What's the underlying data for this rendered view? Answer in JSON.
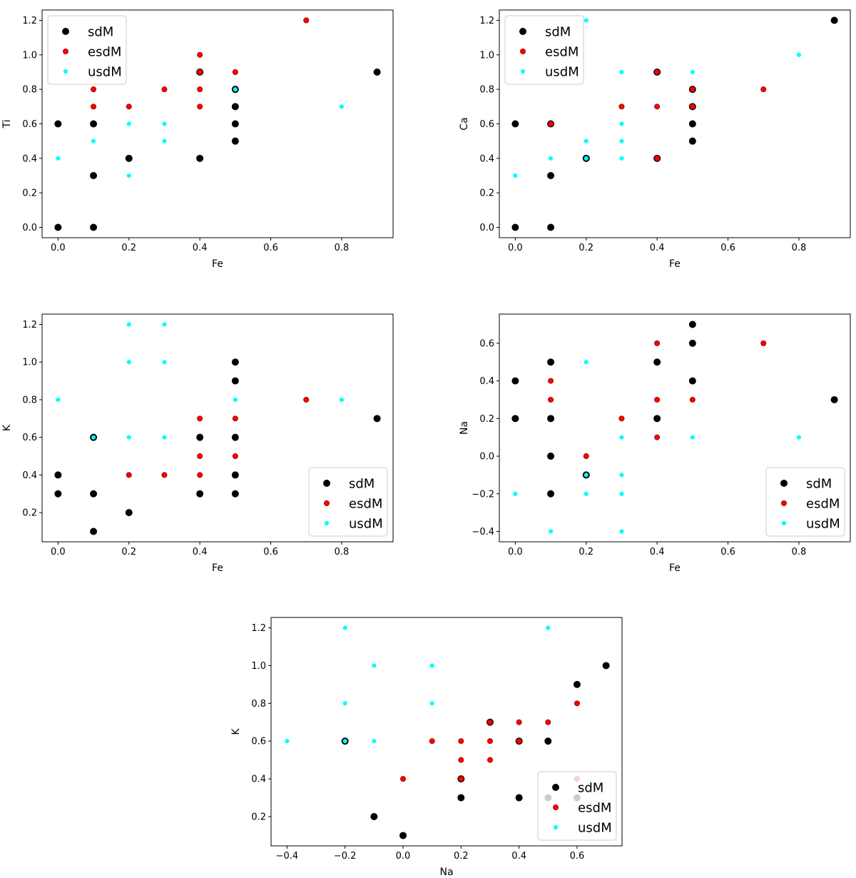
{
  "colors": {
    "sdM": "#000000",
    "esdM": "#ff0000",
    "usdM": "#00ffff"
  },
  "chart_data": [
    {
      "type": "scatter",
      "xlabel": "Fe",
      "ylabel": "Ti",
      "xlim": [
        -0.045,
        0.945
      ],
      "ylim": [
        -0.06,
        1.26
      ],
      "xticks": [
        0.0,
        0.2,
        0.4,
        0.6,
        0.8
      ],
      "xtick_labels": [
        "0.0",
        "0.2",
        "0.4",
        "0.6",
        "0.8"
      ],
      "yticks": [
        0.0,
        0.2,
        0.4,
        0.6,
        0.8,
        1.0,
        1.2
      ],
      "ytick_labels": [
        "0.0",
        "0.2",
        "0.4",
        "0.6",
        "0.8",
        "1.0",
        "1.2"
      ],
      "legend": {
        "placement": "upper-left",
        "entries": [
          "sdM",
          "esdM",
          "usdM"
        ]
      },
      "series": [
        {
          "name": "sdM",
          "points": [
            [
              0,
              0
            ],
            [
              0.1,
              0
            ],
            [
              0,
              0.6
            ],
            [
              0.1,
              0.6
            ],
            [
              0.1,
              0.3
            ],
            [
              0.2,
              0.4
            ],
            [
              0.4,
              0.4
            ],
            [
              0.4,
              0.9
            ],
            [
              0.5,
              0.5
            ],
            [
              0.5,
              0.6
            ],
            [
              0.5,
              0.7
            ],
            [
              0.5,
              0.8
            ],
            [
              0.9,
              0.9
            ]
          ]
        },
        {
          "name": "esdM",
          "points": [
            [
              0.1,
              0.7
            ],
            [
              0.1,
              0.8
            ],
            [
              0.2,
              0.7
            ],
            [
              0.3,
              0.8
            ],
            [
              0.4,
              0.7
            ],
            [
              0.4,
              0.8
            ],
            [
              0.4,
              0.9
            ],
            [
              0.4,
              1.0
            ],
            [
              0.5,
              0.9
            ],
            [
              0.7,
              1.2
            ]
          ]
        },
        {
          "name": "usdM",
          "points": [
            [
              0,
              0.4
            ],
            [
              0.1,
              0.5
            ],
            [
              0.2,
              0.3
            ],
            [
              0.2,
              0.6
            ],
            [
              0.3,
              0.5
            ],
            [
              0.3,
              0.6
            ],
            [
              0.5,
              0.8
            ],
            [
              0.8,
              0.7
            ]
          ]
        }
      ]
    },
    {
      "type": "scatter",
      "xlabel": "Fe",
      "ylabel": "Ca",
      "xlim": [
        -0.045,
        0.945
      ],
      "ylim": [
        -0.06,
        1.26
      ],
      "xticks": [
        0.0,
        0.2,
        0.4,
        0.6,
        0.8
      ],
      "xtick_labels": [
        "0.0",
        "0.2",
        "0.4",
        "0.6",
        "0.8"
      ],
      "yticks": [
        0.0,
        0.2,
        0.4,
        0.6,
        0.8,
        1.0,
        1.2
      ],
      "ytick_labels": [
        "0.0",
        "0.2",
        "0.4",
        "0.6",
        "0.8",
        "1.0",
        "1.2"
      ],
      "legend": {
        "placement": "upper-left",
        "entries": [
          "sdM",
          "esdM",
          "usdM"
        ]
      },
      "series": [
        {
          "name": "sdM",
          "points": [
            [
              0,
              0
            ],
            [
              0.1,
              0
            ],
            [
              0,
              0.6
            ],
            [
              0.1,
              0.6
            ],
            [
              0.1,
              0.3
            ],
            [
              0.2,
              0.4
            ],
            [
              0.4,
              0.4
            ],
            [
              0.4,
              0.9
            ],
            [
              0.5,
              0.5
            ],
            [
              0.5,
              0.6
            ],
            [
              0.5,
              0.7
            ],
            [
              0.5,
              0.8
            ],
            [
              0.9,
              1.2
            ]
          ]
        },
        {
          "name": "esdM",
          "points": [
            [
              0.1,
              0.6
            ],
            [
              0.3,
              0.7
            ],
            [
              0.4,
              0.4
            ],
            [
              0.4,
              0.7
            ],
            [
              0.4,
              0.9
            ],
            [
              0.5,
              0.7
            ],
            [
              0.5,
              0.8
            ],
            [
              0.7,
              0.8
            ]
          ]
        },
        {
          "name": "usdM",
          "points": [
            [
              0,
              0.3
            ],
            [
              0.1,
              0.4
            ],
            [
              0.2,
              0.4
            ],
            [
              0.2,
              0.5
            ],
            [
              0.2,
              1.2
            ],
            [
              0.3,
              0.4
            ],
            [
              0.3,
              0.5
            ],
            [
              0.3,
              0.6
            ],
            [
              0.3,
              0.9
            ],
            [
              0.5,
              0.9
            ],
            [
              0.8,
              1.0
            ]
          ]
        }
      ]
    },
    {
      "type": "scatter",
      "xlabel": "Fe",
      "ylabel": "K",
      "xlim": [
        -0.045,
        0.945
      ],
      "ylim": [
        0.045,
        1.255
      ],
      "xticks": [
        0.0,
        0.2,
        0.4,
        0.6,
        0.8
      ],
      "xtick_labels": [
        "0.0",
        "0.2",
        "0.4",
        "0.6",
        "0.8"
      ],
      "yticks": [
        0.2,
        0.4,
        0.6,
        0.8,
        1.0,
        1.2
      ],
      "ytick_labels": [
        "0.2",
        "0.4",
        "0.6",
        "0.8",
        "1.0",
        "1.2"
      ],
      "legend": {
        "placement": "lower-right",
        "entries": [
          "sdM",
          "esdM",
          "usdM"
        ]
      },
      "series": [
        {
          "name": "sdM",
          "points": [
            [
              0,
              0.3
            ],
            [
              0,
              0.4
            ],
            [
              0.1,
              0.1
            ],
            [
              0.1,
              0.3
            ],
            [
              0.1,
              0.6
            ],
            [
              0.2,
              0.2
            ],
            [
              0.4,
              0.3
            ],
            [
              0.4,
              0.6
            ],
            [
              0.5,
              0.3
            ],
            [
              0.5,
              0.4
            ],
            [
              0.5,
              0.6
            ],
            [
              0.5,
              0.9
            ],
            [
              0.5,
              1.0
            ],
            [
              0.9,
              0.7
            ]
          ]
        },
        {
          "name": "esdM",
          "points": [
            [
              0.2,
              0.4
            ],
            [
              0.3,
              0.4
            ],
            [
              0.4,
              0.4
            ],
            [
              0.4,
              0.5
            ],
            [
              0.4,
              0.7
            ],
            [
              0.5,
              0.5
            ],
            [
              0.5,
              0.7
            ],
            [
              0.7,
              0.8
            ]
          ]
        },
        {
          "name": "usdM",
          "points": [
            [
              0,
              0.8
            ],
            [
              0.1,
              0.6
            ],
            [
              0.2,
              0.6
            ],
            [
              0.2,
              1.0
            ],
            [
              0.2,
              1.2
            ],
            [
              0.3,
              0.6
            ],
            [
              0.3,
              1.0
            ],
            [
              0.3,
              1.2
            ],
            [
              0.5,
              0.8
            ],
            [
              0.8,
              0.8
            ]
          ]
        }
      ]
    },
    {
      "type": "scatter",
      "xlabel": "Fe",
      "ylabel": "Na",
      "xlim": [
        -0.045,
        0.945
      ],
      "ylim": [
        -0.455,
        0.755
      ],
      "xticks": [
        0.0,
        0.2,
        0.4,
        0.6,
        0.8
      ],
      "xtick_labels": [
        "0.0",
        "0.2",
        "0.4",
        "0.6",
        "0.8"
      ],
      "yticks": [
        -0.4,
        -0.2,
        0.0,
        0.2,
        0.4,
        0.6
      ],
      "ytick_labels": [
        "−0.4",
        "−0.2",
        "0.0",
        "0.2",
        "0.4",
        "0.6"
      ],
      "legend": {
        "placement": "lower-right",
        "entries": [
          "sdM",
          "esdM",
          "usdM"
        ]
      },
      "series": [
        {
          "name": "sdM",
          "points": [
            [
              0,
              0.2
            ],
            [
              0,
              0.4
            ],
            [
              0.1,
              -0.2
            ],
            [
              0.1,
              0
            ],
            [
              0.1,
              0.2
            ],
            [
              0.1,
              0.5
            ],
            [
              0.2,
              -0.1
            ],
            [
              0.4,
              0.2
            ],
            [
              0.4,
              0.5
            ],
            [
              0.5,
              0.4
            ],
            [
              0.5,
              0.6
            ],
            [
              0.5,
              0.7
            ],
            [
              0.9,
              0.3
            ]
          ]
        },
        {
          "name": "esdM",
          "points": [
            [
              0.1,
              0.3
            ],
            [
              0.1,
              0.4
            ],
            [
              0.2,
              0
            ],
            [
              0.3,
              0.2
            ],
            [
              0.4,
              0.1
            ],
            [
              0.4,
              0.3
            ],
            [
              0.4,
              0.6
            ],
            [
              0.5,
              0.3
            ],
            [
              0.7,
              0.6
            ]
          ]
        },
        {
          "name": "usdM",
          "points": [
            [
              0,
              -0.2
            ],
            [
              0.1,
              -0.4
            ],
            [
              0.2,
              -0.2
            ],
            [
              0.2,
              -0.1
            ],
            [
              0.2,
              0.5
            ],
            [
              0.3,
              -0.4
            ],
            [
              0.3,
              -0.2
            ],
            [
              0.3,
              -0.1
            ],
            [
              0.3,
              0.1
            ],
            [
              0.5,
              0.1
            ],
            [
              0.8,
              0.1
            ]
          ]
        }
      ]
    },
    {
      "type": "scatter",
      "xlabel": "Na",
      "ylabel": "K",
      "xlim": [
        -0.455,
        0.755
      ],
      "ylim": [
        0.045,
        1.255
      ],
      "xticks": [
        -0.4,
        -0.2,
        0.0,
        0.2,
        0.4,
        0.6
      ],
      "xtick_labels": [
        "−0.4",
        "−0.2",
        "0.0",
        "0.2",
        "0.4",
        "0.6"
      ],
      "yticks": [
        0.2,
        0.4,
        0.6,
        0.8,
        1.0,
        1.2
      ],
      "ytick_labels": [
        "0.2",
        "0.4",
        "0.6",
        "0.8",
        "1.0",
        "1.2"
      ],
      "legend": {
        "placement": "lower-right",
        "entries": [
          "sdM",
          "esdM",
          "usdM"
        ]
      },
      "series": [
        {
          "name": "sdM",
          "points": [
            [
              -0.2,
              0.6
            ],
            [
              -0.1,
              0.2
            ],
            [
              0,
              0.1
            ],
            [
              0.2,
              0.3
            ],
            [
              0.2,
              0.4
            ],
            [
              0.3,
              0.7
            ],
            [
              0.4,
              0.3
            ],
            [
              0.4,
              0.6
            ],
            [
              0.5,
              0.3
            ],
            [
              0.5,
              0.6
            ],
            [
              0.6,
              0.3
            ],
            [
              0.6,
              0.9
            ],
            [
              0.7,
              1.0
            ]
          ]
        },
        {
          "name": "esdM",
          "points": [
            [
              0,
              0.4
            ],
            [
              0.1,
              0.6
            ],
            [
              0.2,
              0.4
            ],
            [
              0.2,
              0.5
            ],
            [
              0.2,
              0.6
            ],
            [
              0.3,
              0.5
            ],
            [
              0.3,
              0.6
            ],
            [
              0.3,
              0.7
            ],
            [
              0.4,
              0.6
            ],
            [
              0.4,
              0.7
            ],
            [
              0.5,
              0.7
            ],
            [
              0.6,
              0.4
            ],
            [
              0.6,
              0.8
            ]
          ]
        },
        {
          "name": "usdM",
          "points": [
            [
              -0.4,
              0.6
            ],
            [
              -0.2,
              0.6
            ],
            [
              -0.2,
              0.8
            ],
            [
              -0.2,
              1.2
            ],
            [
              -0.1,
              0.6
            ],
            [
              -0.1,
              1.0
            ],
            [
              0.1,
              0.8
            ],
            [
              0.1,
              1.0
            ],
            [
              0.5,
              1.2
            ]
          ]
        }
      ]
    }
  ]
}
